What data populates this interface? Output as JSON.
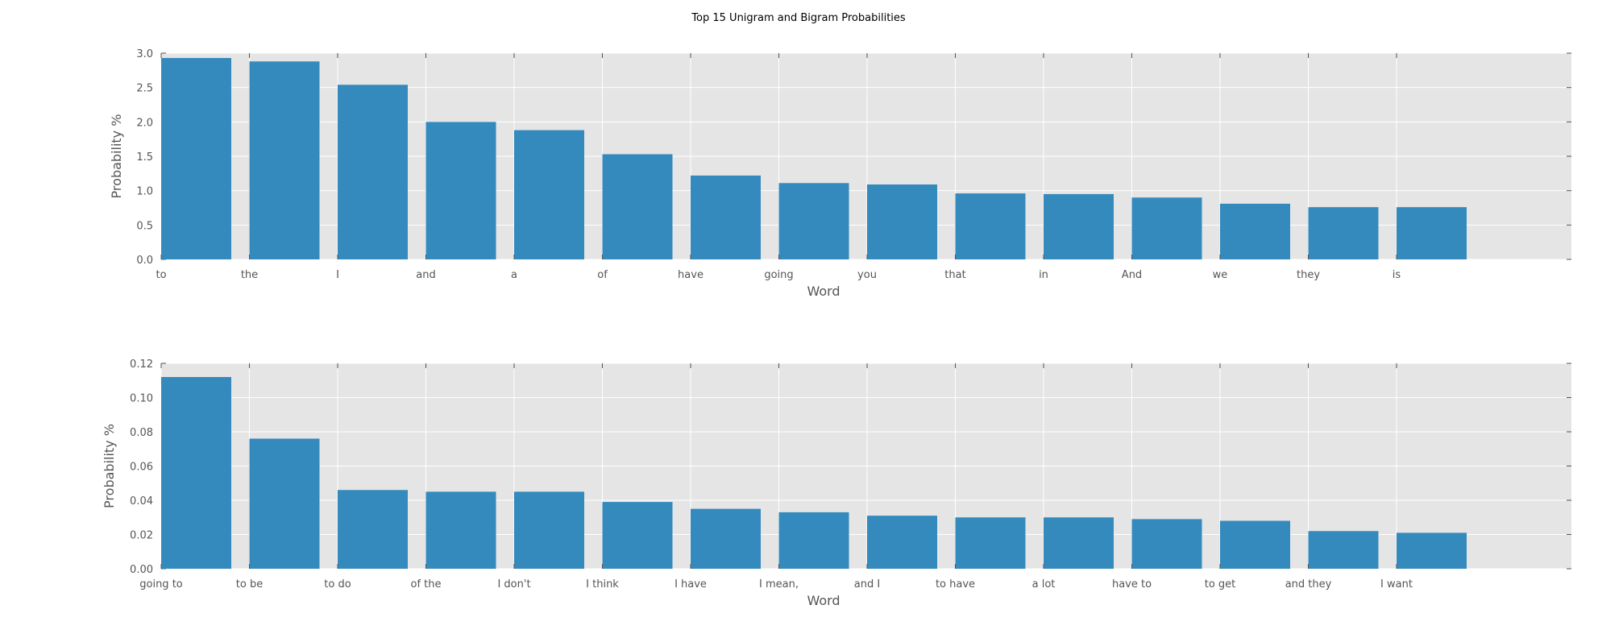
{
  "figure": {
    "title": "Top 15 Unigram and Bigram Probabilities"
  },
  "chart_data": [
    {
      "type": "bar",
      "title": "",
      "xlabel": "Word",
      "ylabel": "Probability %",
      "ylim": [
        0,
        3.0
      ],
      "yticks": [
        "0.0",
        "0.5",
        "1.0",
        "1.5",
        "2.0",
        "2.5",
        "3.0"
      ],
      "grid": true,
      "categories": [
        "to",
        "the",
        "I",
        "and",
        "a",
        "of",
        "have",
        "going",
        "you",
        "that",
        "in",
        "And",
        "we",
        "they",
        "is"
      ],
      "values": [
        2.93,
        2.88,
        2.54,
        2.0,
        1.88,
        1.53,
        1.22,
        1.11,
        1.09,
        0.96,
        0.95,
        0.9,
        0.81,
        0.76,
        0.76
      ]
    },
    {
      "type": "bar",
      "title": "",
      "xlabel": "Word",
      "ylabel": "Probability %",
      "ylim": [
        0,
        0.12
      ],
      "yticks": [
        "0.00",
        "0.02",
        "0.04",
        "0.06",
        "0.08",
        "0.10",
        "0.12"
      ],
      "grid": true,
      "categories": [
        "going to",
        "to be",
        "to do",
        "of the",
        "I don't",
        "I think",
        "I have",
        "I mean,",
        "and I",
        "to have",
        "a lot",
        "have to",
        "to get",
        "and they",
        "I want"
      ],
      "values": [
        0.112,
        0.076,
        0.046,
        0.045,
        0.045,
        0.039,
        0.035,
        0.033,
        0.031,
        0.03,
        0.03,
        0.029,
        0.028,
        0.022,
        0.021
      ]
    }
  ],
  "colors": {
    "bar": "#348abd",
    "plot_background": "#e5e5e5",
    "grid": "#ffffff",
    "tick_text": "#555555"
  }
}
